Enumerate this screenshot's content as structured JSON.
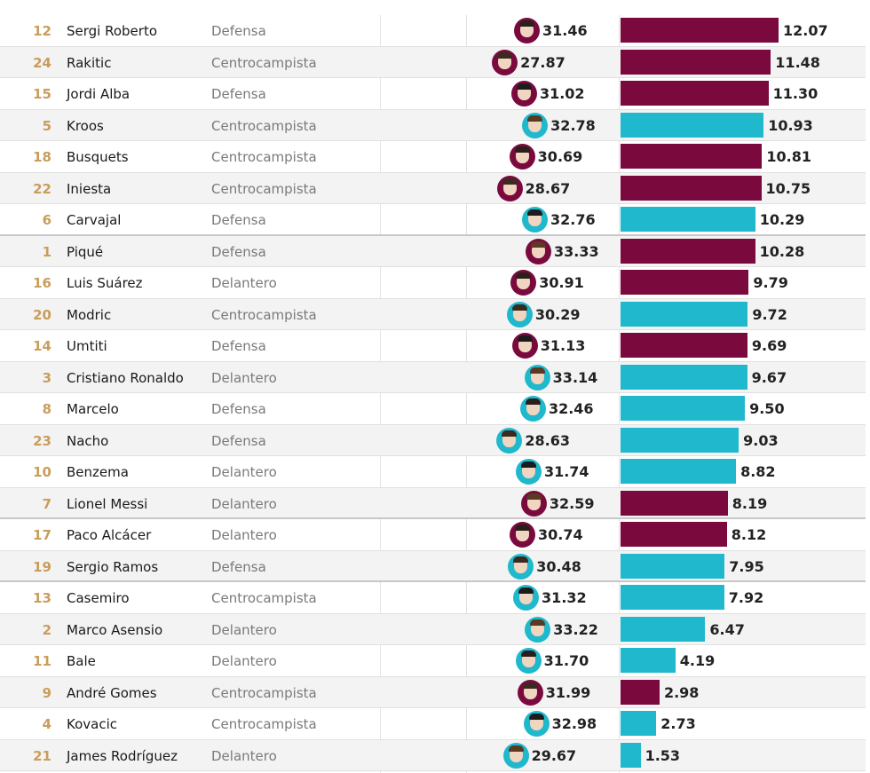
{
  "colors": {
    "barcelona": "#7a0a3e",
    "madrid": "#1fb8cc"
  },
  "chart_data": {
    "type": "bar",
    "columns": [
      "number",
      "player",
      "position",
      "age",
      "value"
    ],
    "rows": [
      {
        "number": "12",
        "player": "Sergi Roberto",
        "position": "Defensa",
        "age": "31.46",
        "value": 12.07,
        "label": "12.07",
        "team": "barcelona"
      },
      {
        "number": "24",
        "player": "Rakitic",
        "position": "Centrocampista",
        "age": "27.87",
        "value": 11.48,
        "label": "11.48",
        "team": "barcelona"
      },
      {
        "number": "15",
        "player": "Jordi Alba",
        "position": "Defensa",
        "age": "31.02",
        "value": 11.3,
        "label": "11.30",
        "team": "barcelona"
      },
      {
        "number": "5",
        "player": "Kroos",
        "position": "Centrocampista",
        "age": "32.78",
        "value": 10.93,
        "label": "10.93",
        "team": "madrid"
      },
      {
        "number": "18",
        "player": "Busquets",
        "position": "Centrocampista",
        "age": "30.69",
        "value": 10.81,
        "label": "10.81",
        "team": "barcelona"
      },
      {
        "number": "22",
        "player": "Iniesta",
        "position": "Centrocampista",
        "age": "28.67",
        "value": 10.75,
        "label": "10.75",
        "team": "barcelona"
      },
      {
        "number": "6",
        "player": "Carvajal",
        "position": "Defensa",
        "age": "32.76",
        "value": 10.29,
        "label": "10.29",
        "team": "madrid"
      },
      {
        "number": "1",
        "player": "Piqué",
        "position": "Defensa",
        "age": "33.33",
        "value": 10.28,
        "label": "10.28",
        "team": "barcelona"
      },
      {
        "number": "16",
        "player": "Luis Suárez",
        "position": "Delantero",
        "age": "30.91",
        "value": 9.79,
        "label": "9.79",
        "team": "barcelona"
      },
      {
        "number": "20",
        "player": "Modric",
        "position": "Centrocampista",
        "age": "30.29",
        "value": 9.72,
        "label": "9.72",
        "team": "madrid"
      },
      {
        "number": "14",
        "player": "Umtiti",
        "position": "Defensa",
        "age": "31.13",
        "value": 9.69,
        "label": "9.69",
        "team": "barcelona"
      },
      {
        "number": "3",
        "player": "Cristiano Ronaldo",
        "position": "Delantero",
        "age": "33.14",
        "value": 9.67,
        "label": "9.67",
        "team": "madrid"
      },
      {
        "number": "8",
        "player": "Marcelo",
        "position": "Defensa",
        "age": "32.46",
        "value": 9.5,
        "label": "9.50",
        "team": "madrid"
      },
      {
        "number": "23",
        "player": "Nacho",
        "position": "Defensa",
        "age": "28.63",
        "value": 9.03,
        "label": "9.03",
        "team": "madrid"
      },
      {
        "number": "10",
        "player": "Benzema",
        "position": "Delantero",
        "age": "31.74",
        "value": 8.82,
        "label": "8.82",
        "team": "madrid"
      },
      {
        "number": "7",
        "player": "Lionel Messi",
        "position": "Delantero",
        "age": "32.59",
        "value": 8.19,
        "label": "8.19",
        "team": "barcelona"
      },
      {
        "number": "17",
        "player": "Paco Alcácer",
        "position": "Delantero",
        "age": "30.74",
        "value": 8.12,
        "label": "8.12",
        "team": "barcelona"
      },
      {
        "number": "19",
        "player": "Sergio Ramos",
        "position": "Defensa",
        "age": "30.48",
        "value": 7.95,
        "label": "7.95",
        "team": "madrid"
      },
      {
        "number": "13",
        "player": "Casemiro",
        "position": "Centrocampista",
        "age": "31.32",
        "value": 7.92,
        "label": "7.92",
        "team": "madrid"
      },
      {
        "number": "2",
        "player": "Marco Asensio",
        "position": "Delantero",
        "age": "33.22",
        "value": 6.47,
        "label": "6.47",
        "team": "madrid"
      },
      {
        "number": "11",
        "player": "Bale",
        "position": "Delantero",
        "age": "31.70",
        "value": 4.19,
        "label": "4.19",
        "team": "madrid"
      },
      {
        "number": "9",
        "player": "André Gomes",
        "position": "Centrocampista",
        "age": "31.99",
        "value": 2.98,
        "label": "2.98",
        "team": "barcelona"
      },
      {
        "number": "4",
        "player": "Kovacic",
        "position": "Centrocampista",
        "age": "32.98",
        "value": 2.73,
        "label": "2.73",
        "team": "madrid"
      },
      {
        "number": "21",
        "player": "James Rodríguez",
        "position": "Delantero",
        "age": "29.67",
        "value": 1.53,
        "label": "1.53",
        "team": "madrid"
      }
    ],
    "age_axis_range": [
      27.5,
      33.5
    ],
    "value_axis_range": [
      0,
      12.07
    ]
  }
}
